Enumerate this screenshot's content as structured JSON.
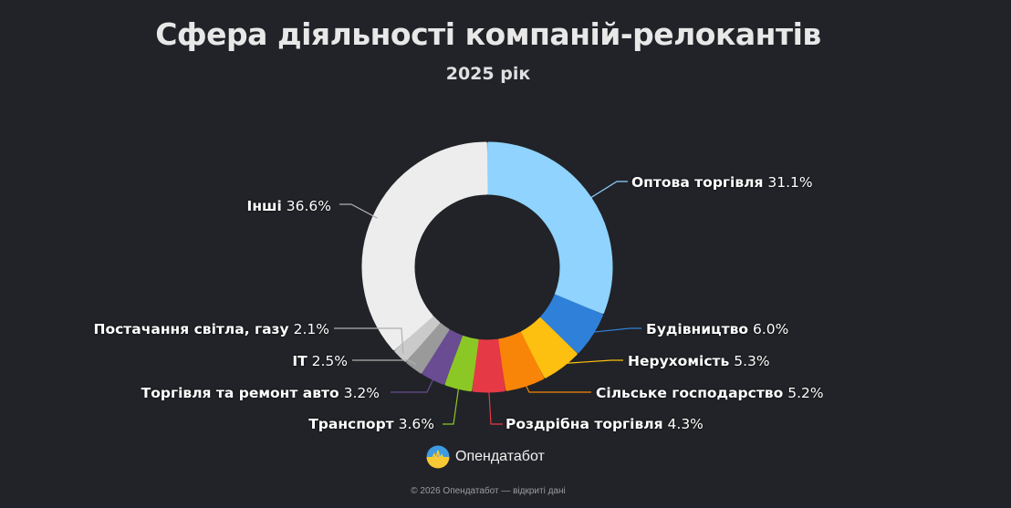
{
  "header": {
    "title": "Сфера діяльності компаній-релокантів",
    "subtitle": "2025 рік"
  },
  "brand": {
    "name": "Опендатабот",
    "logo_icon": "opendatabot-logo-icon"
  },
  "footer": {
    "text": "© 2026 Опендатабот — відкриті дані"
  },
  "labels": [
    {
      "name": "Оптова торгівля",
      "pct": "31.1%"
    },
    {
      "name": "Будівництво",
      "pct": "6.0%"
    },
    {
      "name": "Нерухомість",
      "pct": "5.3%"
    },
    {
      "name": "Сільське господарство",
      "pct": "5.2%"
    },
    {
      "name": "Роздрібна торгівля",
      "pct": "4.3%"
    },
    {
      "name": "Транспорт",
      "pct": "3.6%"
    },
    {
      "name": "Торгівля та ремонт авто",
      "pct": "3.2%"
    },
    {
      "name": "IT",
      "pct": "2.5%"
    },
    {
      "name": "Постачання світла, газу",
      "pct": "2.1%"
    },
    {
      "name": "Інші",
      "pct": "36.6%"
    }
  ],
  "chart_data": {
    "type": "pie",
    "subtype": "donut",
    "title": "Сфера діяльності компаній-релокантів",
    "subtitle": "2025 рік",
    "categories": [
      "Оптова торгівля",
      "Будівництво",
      "Нерухомість",
      "Сільське господарство",
      "Роздрібна торгівля",
      "Транспорт",
      "Торгівля та ремонт авто",
      "IT",
      "Постачання світла, газу",
      "Інші"
    ],
    "values": [
      31.1,
      6.0,
      5.3,
      5.2,
      4.3,
      3.6,
      3.2,
      2.5,
      2.1,
      36.6
    ],
    "unit": "%",
    "colors": [
      "#8fd3fe",
      "#2f80d8",
      "#fdc010",
      "#f98508",
      "#e63946",
      "#8cc825",
      "#6a4c93",
      "#9a9a9a",
      "#cacaca",
      "#ededed"
    ],
    "start_angle": "top, clockwise",
    "legend": "none (outside labels with leader lines)"
  }
}
